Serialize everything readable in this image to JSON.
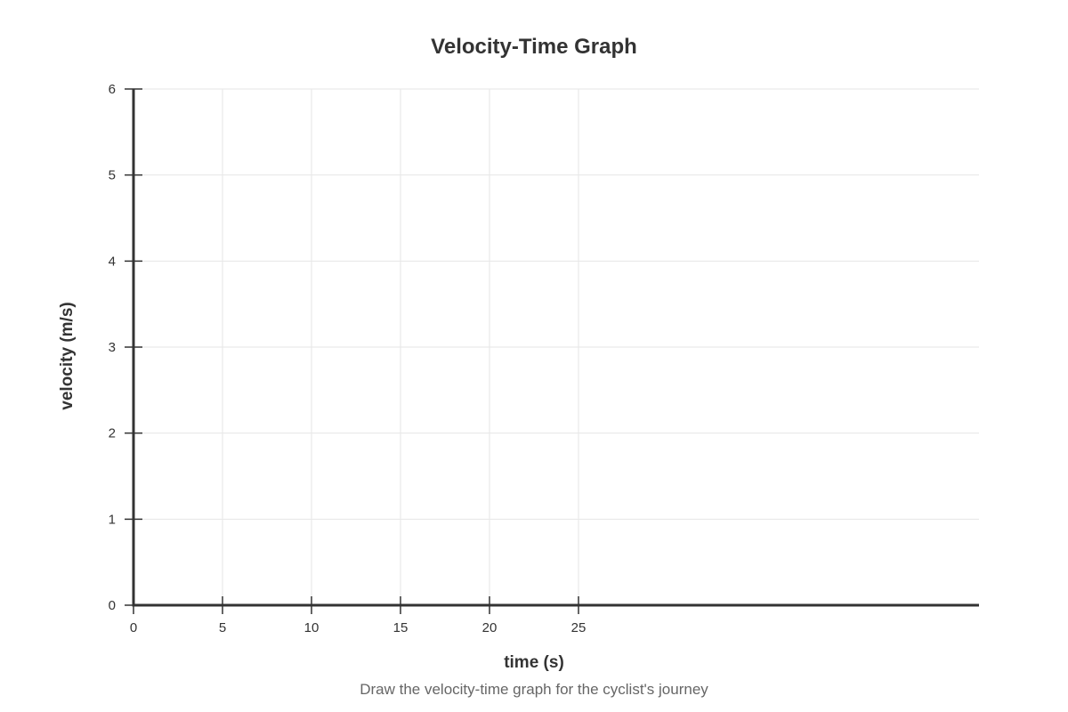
{
  "chart_data": {
    "type": "line",
    "title": "Velocity-Time Graph",
    "xlabel": "time (s)",
    "ylabel": "velocity (m/s)",
    "caption": "Draw the velocity-time graph for the cyclist's journey",
    "xlim": [
      0,
      47.5
    ],
    "ylim": [
      0,
      6
    ],
    "x_ticks": [
      0,
      5,
      10,
      15,
      20,
      25
    ],
    "y_ticks": [
      0,
      1,
      2,
      3,
      4,
      5,
      6
    ],
    "grid": true,
    "series": []
  }
}
